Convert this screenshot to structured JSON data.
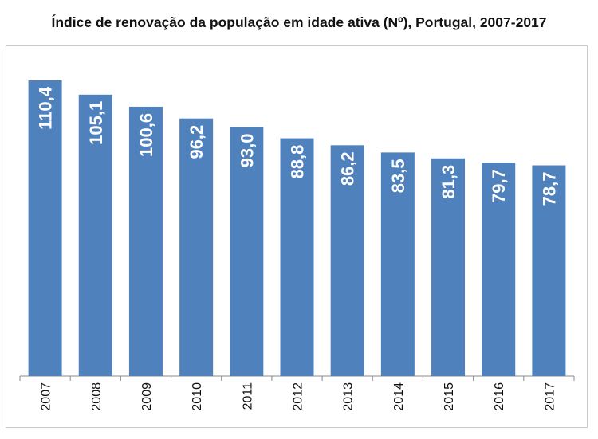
{
  "chart_data": {
    "type": "bar",
    "title": "Índice de renovação da população em idade ativa (Nº), Portugal, 2007-2017",
    "xlabel": "",
    "ylabel": "",
    "categories": [
      "2007",
      "2008",
      "2009",
      "2010",
      "2011",
      "2012",
      "2013",
      "2014",
      "2015",
      "2016",
      "2017"
    ],
    "values": [
      110.4,
      105.1,
      100.6,
      96.2,
      93.0,
      88.8,
      86.2,
      83.5,
      81.3,
      79.7,
      78.7
    ],
    "value_labels": [
      "110,4",
      "105,1",
      "100,6",
      "96,2",
      "93,0",
      "88,8",
      "86,2",
      "83,5",
      "81,3",
      "79,7",
      "78,7"
    ],
    "ylim": [
      0,
      112
    ],
    "grid": false,
    "bar_color": "#4F81BD",
    "label_color": "#FFFFFF"
  }
}
